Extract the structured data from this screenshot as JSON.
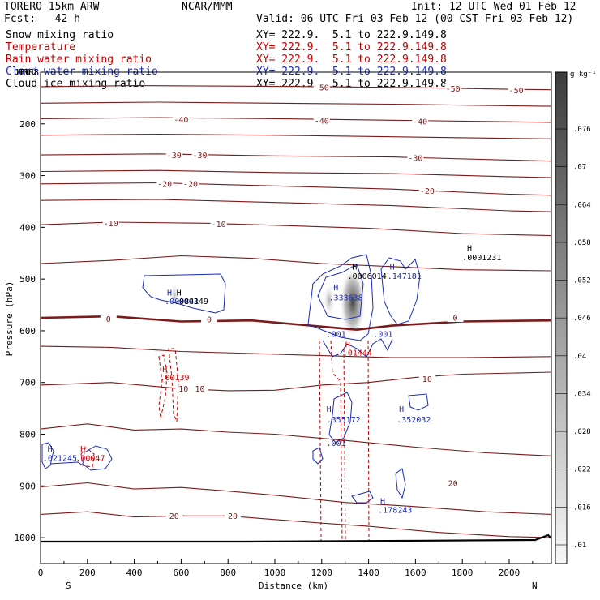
{
  "header": {
    "model": "TORERO  15km ARW",
    "org": "NCAR/MMM",
    "init": "Init: 12 UTC Wed 01 Feb 12",
    "fcst": "Fcst:   42 h",
    "valid": "Valid: 06 UTC Fri 03 Feb 12 (00 CST Fri 03 Feb 12)"
  },
  "fields": [
    {
      "name": "Snow mixing ratio",
      "xy": "XY= 222.9.  5.1 to 222.9.149.8",
      "color": "#000000"
    },
    {
      "name": "Temperature",
      "xy": "XY= 222.9.  5.1 to 222.9.149.8",
      "color": "#c00000"
    },
    {
      "name": "Rain water mixing ratio",
      "xy": "XY= 222.9.  5.1 to 222.9.149.8",
      "color": "#c00000"
    },
    {
      "name": "Cloud water mixing ratio",
      "xy": "XY= 222.9.  5.1 to 222.9.149.8",
      "color": "#1a2bb5"
    },
    {
      "name": "Cloud ice mixing ratio",
      "xy": "XY= 222.9.  5.1 to 222.9.149.8",
      "color": "#000000"
    }
  ],
  "chart_data": {
    "type": "cross-section contour",
    "xlabel": "Distance (km)",
    "ylabel": "Pressure (hPa)",
    "xlim": [
      0,
      2180
    ],
    "ylim": [
      1050,
      100
    ],
    "x_ticks": [
      0,
      200,
      400,
      600,
      800,
      1000,
      1200,
      1400,
      1600,
      1800,
      2000
    ],
    "y_ticks": [
      100,
      200,
      300,
      400,
      500,
      600,
      700,
      800,
      900,
      1000
    ],
    "y_tick_label_100": "100",
    "y_overlap_label": ".0008",
    "direction_left": "S",
    "direction_right": "N",
    "colorbar": {
      "unit": "g kg⁻¹",
      "ticks": [
        ".076",
        ".07",
        ".064",
        ".058",
        ".052",
        ".046",
        ".04",
        ".034",
        ".028",
        ".022",
        ".016",
        ".01"
      ]
    },
    "temperature_isotherms": [
      {
        "level": -50,
        "label": "-50",
        "points": [
          [
            0,
            128
          ],
          [
            400,
            126
          ],
          [
            800,
            127
          ],
          [
            1200,
            128
          ],
          [
            1600,
            130
          ],
          [
            2000,
            133
          ],
          [
            2180,
            134
          ]
        ],
        "labels_at": [
          [
            1200,
            130
          ],
          [
            1760,
            132
          ],
          [
            2030,
            135
          ]
        ]
      },
      {
        "level": -45,
        "label": "",
        "points": [
          [
            0,
            160
          ],
          [
            500,
            158
          ],
          [
            1000,
            160
          ],
          [
            1500,
            162
          ],
          [
            2000,
            165
          ],
          [
            2180,
            166
          ]
        ],
        "labels_at": []
      },
      {
        "level": -40,
        "label": "-40",
        "points": [
          [
            0,
            190
          ],
          [
            500,
            188
          ],
          [
            1000,
            190
          ],
          [
            1500,
            193
          ],
          [
            2000,
            196
          ],
          [
            2180,
            197
          ]
        ],
        "labels_at": [
          [
            600,
            192
          ],
          [
            1200,
            194
          ],
          [
            1620,
            196
          ]
        ]
      },
      {
        "level": -35,
        "label": "",
        "points": [
          [
            0,
            222
          ],
          [
            500,
            220
          ],
          [
            1000,
            222
          ],
          [
            1500,
            225
          ],
          [
            2000,
            228
          ],
          [
            2180,
            229
          ]
        ],
        "labels_at": []
      },
      {
        "level": -30,
        "label": "-30",
        "points": [
          [
            0,
            260
          ],
          [
            500,
            258
          ],
          [
            1000,
            262
          ],
          [
            1500,
            264
          ],
          [
            2000,
            270
          ],
          [
            2180,
            272
          ]
        ],
        "labels_at": [
          [
            570,
            261
          ],
          [
            680,
            261
          ],
          [
            1600,
            266
          ]
        ]
      },
      {
        "level": -25,
        "label": "",
        "points": [
          [
            0,
            292
          ],
          [
            500,
            290
          ],
          [
            1000,
            294
          ],
          [
            1500,
            296
          ],
          [
            2000,
            302
          ],
          [
            2180,
            304
          ]
        ],
        "labels_at": []
      },
      {
        "level": -20,
        "label": "-20",
        "points": [
          [
            0,
            316
          ],
          [
            500,
            314
          ],
          [
            1000,
            320
          ],
          [
            1500,
            326
          ],
          [
            2000,
            336
          ],
          [
            2180,
            338
          ]
        ],
        "labels_at": [
          [
            530,
            316
          ],
          [
            640,
            316
          ],
          [
            1650,
            330
          ]
        ]
      },
      {
        "level": -15,
        "label": "",
        "points": [
          [
            0,
            348
          ],
          [
            500,
            346
          ],
          [
            1000,
            352
          ],
          [
            1500,
            358
          ],
          [
            2000,
            368
          ],
          [
            2180,
            370
          ]
        ],
        "labels_at": []
      },
      {
        "level": -10,
        "label": "-10",
        "points": [
          [
            0,
            395
          ],
          [
            300,
            390
          ],
          [
            700,
            392
          ],
          [
            1000,
            396
          ],
          [
            1400,
            402
          ],
          [
            1800,
            412
          ],
          [
            2180,
            416
          ]
        ],
        "labels_at": [
          [
            300,
            392
          ],
          [
            760,
            394
          ]
        ]
      },
      {
        "level": -5,
        "label": "",
        "points": [
          [
            0,
            470
          ],
          [
            300,
            464
          ],
          [
            600,
            455
          ],
          [
            900,
            460
          ],
          [
            1200,
            470
          ],
          [
            1500,
            476
          ],
          [
            1800,
            482
          ],
          [
            2180,
            484
          ]
        ],
        "labels_at": []
      },
      {
        "level": 0,
        "label": "0",
        "bold": true,
        "points": [
          [
            0,
            575
          ],
          [
            300,
            572
          ],
          [
            600,
            582
          ],
          [
            900,
            580
          ],
          [
            1200,
            592
          ],
          [
            1350,
            598
          ],
          [
            1500,
            590
          ],
          [
            1800,
            582
          ],
          [
            2180,
            580
          ]
        ],
        "labels_at": [
          [
            290,
            577
          ],
          [
            720,
            578
          ],
          [
            1770,
            575
          ]
        ]
      },
      {
        "level": 5,
        "label": "",
        "points": [
          [
            0,
            630
          ],
          [
            300,
            632
          ],
          [
            600,
            640
          ],
          [
            900,
            644
          ],
          [
            1200,
            648
          ],
          [
            1500,
            652
          ],
          [
            1800,
            652
          ],
          [
            2180,
            650
          ]
        ],
        "labels_at": []
      },
      {
        "level": 10,
        "label": "10",
        "points": [
          [
            0,
            705
          ],
          [
            300,
            700
          ],
          [
            600,
            712
          ],
          [
            800,
            716
          ],
          [
            1000,
            715
          ],
          [
            1200,
            705
          ],
          [
            1400,
            700
          ],
          [
            1600,
            690
          ],
          [
            1800,
            684
          ],
          [
            2180,
            680
          ]
        ],
        "labels_at": [
          [
            610,
            712
          ],
          [
            680,
            712
          ],
          [
            1650,
            693
          ]
        ]
      },
      {
        "level": 15,
        "label": "",
        "points": [
          [
            0,
            790
          ],
          [
            200,
            780
          ],
          [
            400,
            792
          ],
          [
            600,
            790
          ],
          [
            800,
            796
          ],
          [
            1000,
            800
          ],
          [
            1300,
            812
          ],
          [
            1600,
            825
          ],
          [
            1900,
            836
          ],
          [
            2180,
            842
          ]
        ],
        "labels_at": []
      },
      {
        "level": 20,
        "label": "20",
        "points": [
          [
            0,
            902
          ],
          [
            200,
            894
          ],
          [
            400,
            906
          ],
          [
            600,
            903
          ],
          [
            800,
            910
          ],
          [
            1000,
            918
          ],
          [
            1300,
            932
          ],
          [
            1600,
            940
          ],
          [
            1900,
            950
          ],
          [
            2180,
            955
          ]
        ],
        "labels_at": [
          [
            570,
            958
          ],
          [
            820,
            958
          ],
          [
            1760,
            895
          ]
        ]
      },
      {
        "level": 25,
        "label": "",
        "points": [
          [
            0,
            955
          ],
          [
            200,
            950
          ],
          [
            400,
            960
          ],
          [
            600,
            958
          ],
          [
            800,
            958
          ],
          [
            1000,
            965
          ],
          [
            1200,
            972
          ],
          [
            1400,
            978
          ],
          [
            1700,
            990
          ],
          [
            2000,
            998
          ],
          [
            2180,
            1000
          ]
        ],
        "labels_at": []
      }
    ],
    "annotations": [
      {
        "text": "H",
        "x": 540,
        "p": 532,
        "color": "#1a2bb5"
      },
      {
        "text": ".000841",
        "x": 530,
        "p": 548,
        "color": "#1a2bb5"
      },
      {
        "text": "H",
        "x": 580,
        "p": 532,
        "color": "#000000"
      },
      {
        "text": ".000349",
        "x": 570,
        "p": 548,
        "color": "#000000"
      },
      {
        "text": "H",
        "x": 1330,
        "p": 482,
        "color": "#000000"
      },
      {
        "text": ".0006014",
        "x": 1310,
        "p": 500,
        "color": "#000000"
      },
      {
        "text": "H",
        "x": 1250,
        "p": 522,
        "color": "#1a2bb5"
      },
      {
        "text": ".333638",
        "x": 1230,
        "p": 541,
        "color": "#1a2bb5"
      },
      {
        "text": "H",
        "x": 1490,
        "p": 482,
        "color": "#1a2bb5"
      },
      {
        "text": ".147181",
        "x": 1480,
        "p": 500,
        "color": "#1a2bb5"
      },
      {
        "text": "H",
        "x": 1820,
        "p": 446,
        "color": "#000000"
      },
      {
        "text": ".0001231",
        "x": 1800,
        "p": 464,
        "color": "#000000"
      },
      {
        "text": ".001",
        "x": 1220,
        "p": 612,
        "color": "#1a2bb5"
      },
      {
        "text": ".001",
        "x": 1420,
        "p": 612,
        "color": "#1a2bb5"
      },
      {
        "text": "H",
        "x": 1300,
        "p": 632,
        "color": "#c00000"
      },
      {
        "text": ".01444",
        "x": 1290,
        "p": 648,
        "color": "#c00000"
      },
      {
        "text": "H",
        "x": 520,
        "p": 680,
        "color": "#c00000"
      },
      {
        "text": ".00139",
        "x": 510,
        "p": 696,
        "color": "#c00000"
      },
      {
        "text": "H",
        "x": 1220,
        "p": 757,
        "color": "#1a2bb5"
      },
      {
        "text": ".355172",
        "x": 1220,
        "p": 777,
        "color": "#1a2bb5"
      },
      {
        "text": "H",
        "x": 1530,
        "p": 757,
        "color": "#1a2bb5"
      },
      {
        "text": ".352032",
        "x": 1520,
        "p": 777,
        "color": "#1a2bb5"
      },
      {
        "text": ".001",
        "x": 1220,
        "p": 823,
        "color": "#1a2bb5"
      },
      {
        "text": "H",
        "x": 30,
        "p": 834,
        "color": "#1a2bb5"
      },
      {
        "text": ".021245",
        "x": 10,
        "p": 852,
        "color": "#1a2bb5"
      },
      {
        "text": "H",
        "x": 170,
        "p": 834,
        "color": "#c00000"
      },
      {
        "text": ".00047",
        "x": 150,
        "p": 852,
        "color": "#c00000"
      },
      {
        "text": "H",
        "x": 1450,
        "p": 935,
        "color": "#1a2bb5"
      },
      {
        "text": ".178243",
        "x": 1440,
        "p": 952,
        "color": "#1a2bb5"
      }
    ]
  }
}
